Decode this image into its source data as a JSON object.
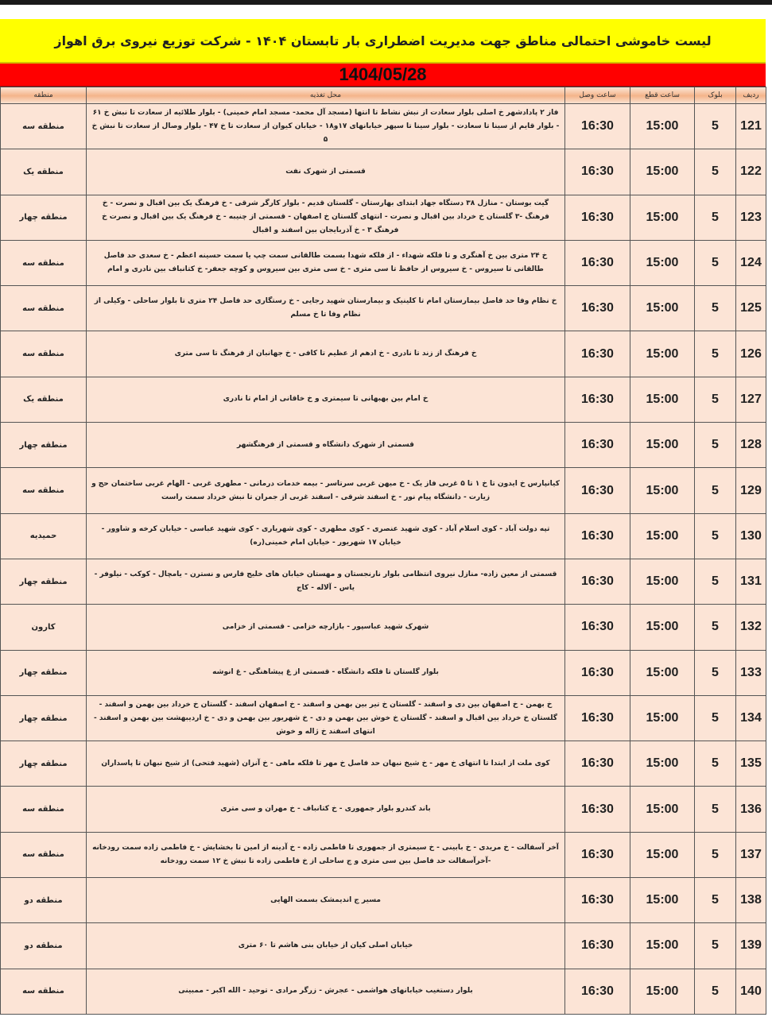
{
  "title": "لیست خاموشی احتمالی مناطق جهت مدیریت اضطراری بار تابستان ۱۴۰۴ - شرکت توزیع نیروی برق اهواز",
  "date": "1404/05/28",
  "colors": {
    "title_bg": "#ffff00",
    "date_bg": "#ff0000",
    "row_bg": "#fce4d6",
    "header_bg": "#f4b48a"
  },
  "headers": {
    "row": "ردیف",
    "block": "بلوک",
    "cut": "ساعت قطع",
    "reconnect": "ساعت وصل",
    "location": "محل تغذیه",
    "region": "منطقه"
  },
  "rows": [
    {
      "row": "121",
      "block": "5",
      "cut": "15:00",
      "reconnect": "16:30",
      "location": "فاز ۲ پادادشهر خ اصلی بلوار سعادت از نبش نشاط تا انتها (مسجد آل محمد- مسجد امام خمینی) - بلوار طلائیه از سعادت تا نبش خ ۶۱ - بلوار قایم از سینا تا سعادت - بلوار سینا تا سپهر خیابانهای ۱۷و۱۸ - خیابان کیوان از سعادت تا خ ۴۷ - بلوار وصال از سعادت تا نبش خ ۵",
      "region": "منطقه سه"
    },
    {
      "row": "122",
      "block": "5",
      "cut": "15:00",
      "reconnect": "16:30",
      "location": "قسمتی از شهرک نفت",
      "region": "منطقه یک"
    },
    {
      "row": "123",
      "block": "5",
      "cut": "15:00",
      "reconnect": "16:30",
      "location": "گیت بوستان - منازل ۳۸ دستگاه جهاد ابتدای بهارستان - گلستان قدیم - بلوار کارگر شرقی - خ فرهنگ یک بین اقبال و نصرت - خ فرهنگ -۳ گلستان خ خرداد بین اقبال و نصرت - انتهای گلستان خ اصفهان - قسمتی از چنیبه - خ فرهنگ یک بین اقبال و نصرت خ فرهنگ ۳ - خ آذربایجان بین اسفند و اقبال",
      "region": "منطقه چهار"
    },
    {
      "row": "124",
      "block": "5",
      "cut": "15:00",
      "reconnect": "16:30",
      "location": "خ ۲۴ متری بین خ آهنگری و تا فلکه شهداء - از فلکه شهدا بسمت طالقانی سمت چپ یا سمت حسینه اعظم - خ سعدی حد فاصل طالقانی تا سیروس - خ سیروس از حافظ تا سی متری - خ سی متری بین سیروس و کوچه جعفر- خ کتانباف بین نادری و امام",
      "region": "منطقه سه"
    },
    {
      "row": "125",
      "block": "5",
      "cut": "15:00",
      "reconnect": "16:30",
      "location": "خ نظام وفا حد فاصل بیمارستان امام تا کلینیک و بیمارستان شهید رجایی - خ رستگاری حد فاصل ۲۴ متری تا بلوار ساحلی - وکیلی از نظام وفا تا خ مسلم",
      "region": "منطقه سه"
    },
    {
      "row": "126",
      "block": "5",
      "cut": "15:00",
      "reconnect": "16:30",
      "location": "خ فرهنگ از زند تا نادری - خ ادهم از عظیم تا کافی - خ جهانبان از فرهنگ تا سی متری",
      "region": "منطقه سه"
    },
    {
      "row": "127",
      "block": "5",
      "cut": "15:00",
      "reconnect": "16:30",
      "location": "خ امام بین بهبهانی تا سیمتری و خ خاقانی از امام تا نادری",
      "region": "منطقه یک"
    },
    {
      "row": "128",
      "block": "5",
      "cut": "15:00",
      "reconnect": "16:30",
      "location": "قسمتی از شهرک دانشگاه و قسمتی از فرهنگشهر",
      "region": "منطقه چهار"
    },
    {
      "row": "129",
      "block": "5",
      "cut": "15:00",
      "reconnect": "16:30",
      "location": "کیانپارس خ ایدون تا خ ۱ تا ۵ غربی فاز یک - خ میهن غربی سرتاسر - بیمه خدمات درمانی - مطهری غربی - الهام غربی ساختمان حج و زیارت - دانشگاه پیام نور - خ اسفند شرقی - اسفند غربی از جمران تا نبش خرداد سمت راست",
      "region": "منطقه سه"
    },
    {
      "row": "130",
      "block": "5",
      "cut": "15:00",
      "reconnect": "16:30",
      "location": "تپه دولت آباد - کوی اسلام آباد - کوی شهید عنصری - کوی مطهری - کوی شهریاری - کوی شهید عباسی - خیابان کرخه و شاوور - خیابان ۱۷ شهریور - خیابان امام خمینی(ره)",
      "region": "حمیدیه"
    },
    {
      "row": "131",
      "block": "5",
      "cut": "15:00",
      "reconnect": "16:30",
      "location": "قسمتی از معین زاده- منازل نیروی انتظامی بلوار نارنجستان و مهستان خیابان های خلیج فارس و نسترن - یامچال - کوکب - نیلوفر - یاس - آلاله - کاج",
      "region": "منطقه چهار"
    },
    {
      "row": "132",
      "block": "5",
      "cut": "15:00",
      "reconnect": "16:30",
      "location": "شهرک شهید عباسپور - بازارچه خزامی - قسمتی از خزامی",
      "region": "کارون"
    },
    {
      "row": "133",
      "block": "5",
      "cut": "15:00",
      "reconnect": "16:30",
      "location": "بلوار گلستان تا فلکه دانشگاه - قسمتی از غ پیشاهنگی - غ انوشه",
      "region": "منطقه چهار"
    },
    {
      "row": "134",
      "block": "5",
      "cut": "15:00",
      "reconnect": "16:30",
      "location": "خ بهمن - خ اصفهان بین دی و اسفند - گلستان خ تیر بین بهمن و اسفند - خ اصفهان اسفند - گلستان خ خرداد بین بهمن و اسفند - گلستان خ خرداد بین اقبال و اسفند - گلستان خ خوش بین بهمن و دی - خ شهریور بین بهمن و دی - خ اردیبهشت بین بهمن و اسفند - انتهای اسفند خ ژاله و خوش",
      "region": "منطقه چهار"
    },
    {
      "row": "135",
      "block": "5",
      "cut": "15:00",
      "reconnect": "16:30",
      "location": "کوی ملت از ابتدا تا انتهای خ مهر - خ شیخ نبهان حد فاصل خ مهر تا فلکه ماهی - خ آنزان (شهید فتحی) از شیخ نبهان تا پاسداران",
      "region": "منطقه چهار"
    },
    {
      "row": "136",
      "block": "5",
      "cut": "15:00",
      "reconnect": "16:30",
      "location": "باند کندرو بلوار جمهوری - خ کتانباف - خ مهران و سی متری",
      "region": "منطقه سه"
    },
    {
      "row": "137",
      "block": "5",
      "cut": "15:00",
      "reconnect": "16:30",
      "location": "آخر آسفالت - خ مریدی - خ بابینی - خ سیمتری از جمهوری تا فاطمی زاده - خ آدینه از امین تا بخشایش - خ فاطمی زاده سمت رودخانه -آخرآسفالت حد فاصل بین سی متری و ج ساحلی از خ فاطمی زاده تا نبش خ ۱۲ سمت رودخانه",
      "region": "منطقه سه"
    },
    {
      "row": "138",
      "block": "5",
      "cut": "15:00",
      "reconnect": "16:30",
      "location": "مسیر ج اندیمشک بسمت الهایی",
      "region": "منطقه دو"
    },
    {
      "row": "139",
      "block": "5",
      "cut": "15:00",
      "reconnect": "16:30",
      "location": "خیابان اصلی کیان از خیابان بنی هاشم تا ۶۰ متری",
      "region": "منطقه دو"
    },
    {
      "row": "140",
      "block": "5",
      "cut": "15:00",
      "reconnect": "16:30",
      "location": "بلوار دستغیب خیابانهای هواشمی - عجرش - زرگر مرادی - توحید - الله اکبر - ممبینی",
      "region": "منطقه سه"
    }
  ]
}
